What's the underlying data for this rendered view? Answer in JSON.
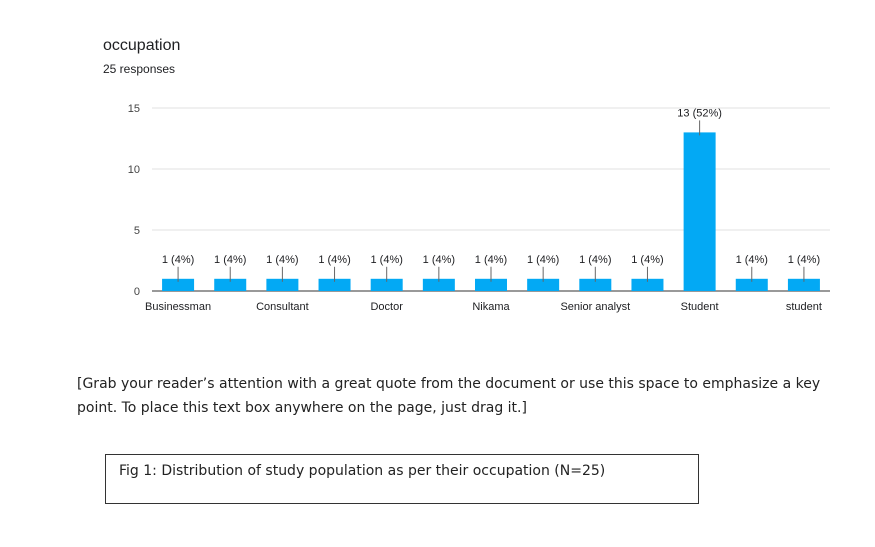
{
  "header": {
    "title": "occupation",
    "responses": "25 responses"
  },
  "chart_data": {
    "type": "bar",
    "categories": [
      "Businessman",
      "",
      "Consultant",
      "",
      "Doctor",
      "",
      "Nikama",
      "",
      "Senior analyst",
      "",
      "Student",
      "",
      "student"
    ],
    "values": [
      1,
      1,
      1,
      1,
      1,
      1,
      1,
      1,
      1,
      1,
      13,
      1,
      1
    ],
    "data_labels": [
      "1 (4%)",
      "1 (4%)",
      "1 (4%)",
      "1 (4%)",
      "1 (4%)",
      "1 (4%)",
      "1 (4%)",
      "1 (4%)",
      "1 (4%)",
      "1 (4%)",
      "13 (52%)",
      "1 (4%)",
      "1 (4%)"
    ],
    "y_ticks": [
      0,
      5,
      10,
      15
    ],
    "ylim": [
      0,
      15
    ],
    "grid": true,
    "bar_color": "#03a9f4"
  },
  "quote_text": "[Grab your reader’s attention with a great quote from the document or use this space to emphasize a key point. To place this text box anywhere on the page, just drag it.]",
  "caption": "Fig 1: Distribution of study population as per their occupation (N=25)"
}
